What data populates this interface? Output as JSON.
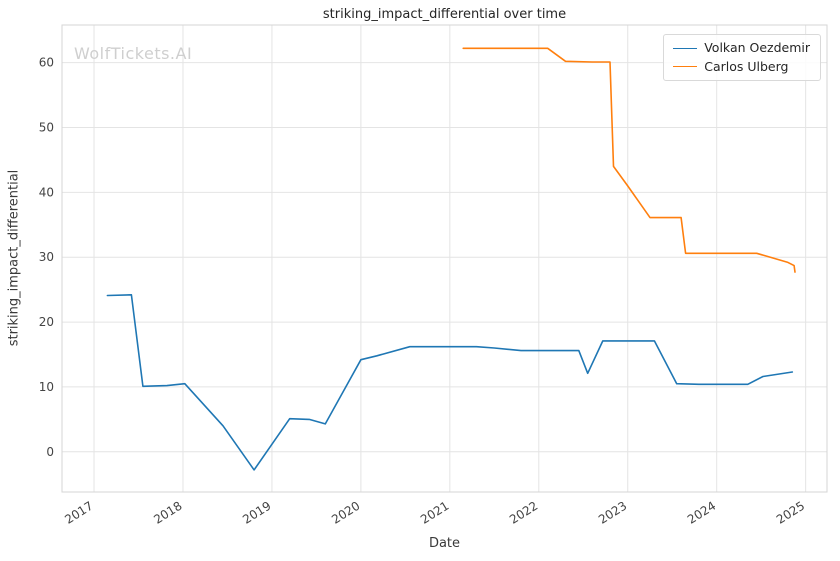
{
  "watermark": "WolfTickets.AI",
  "chart_data": {
    "type": "line",
    "title": "striking_impact_differential over time",
    "xlabel": "Date",
    "ylabel": "striking_impact_differential",
    "grid": true,
    "legend_position": "upper right",
    "xlim": [
      2016.64,
      2025.24
    ],
    "ylim": [
      -6.2,
      65.8
    ],
    "xticks": [
      2017,
      2018,
      2019,
      2020,
      2021,
      2022,
      2023,
      2024,
      2025
    ],
    "yticks": [
      0,
      10,
      20,
      30,
      40,
      50,
      60
    ],
    "series": [
      {
        "name": "Volkan Oezdemir",
        "color": "#1f77b4",
        "points": [
          [
            2017.15,
            24.1
          ],
          [
            2017.42,
            24.2
          ],
          [
            2017.55,
            10.1
          ],
          [
            2017.82,
            10.2
          ],
          [
            2018.02,
            10.5
          ],
          [
            2018.45,
            4.0
          ],
          [
            2018.8,
            -2.8
          ],
          [
            2019.2,
            5.1
          ],
          [
            2019.42,
            5.0
          ],
          [
            2019.6,
            4.3
          ],
          [
            2020.0,
            14.2
          ],
          [
            2020.18,
            14.8
          ],
          [
            2020.55,
            16.2
          ],
          [
            2020.9,
            16.2
          ],
          [
            2021.3,
            16.2
          ],
          [
            2021.5,
            16.0
          ],
          [
            2021.8,
            15.6
          ],
          [
            2022.1,
            15.6
          ],
          [
            2022.45,
            15.6
          ],
          [
            2022.55,
            12.1
          ],
          [
            2022.72,
            17.1
          ],
          [
            2023.0,
            17.1
          ],
          [
            2023.3,
            17.1
          ],
          [
            2023.55,
            10.5
          ],
          [
            2023.8,
            10.4
          ],
          [
            2024.1,
            10.4
          ],
          [
            2024.35,
            10.4
          ],
          [
            2024.52,
            11.6
          ],
          [
            2024.85,
            12.3
          ]
        ]
      },
      {
        "name": "Carlos Ulberg",
        "color": "#ff7f0e",
        "points": [
          [
            2021.15,
            62.2
          ],
          [
            2021.55,
            62.2
          ],
          [
            2021.9,
            62.2
          ],
          [
            2022.1,
            62.2
          ],
          [
            2022.3,
            60.2
          ],
          [
            2022.6,
            60.1
          ],
          [
            2022.8,
            60.1
          ],
          [
            2022.84,
            44.0
          ],
          [
            2023.0,
            41.0
          ],
          [
            2023.25,
            36.1
          ],
          [
            2023.6,
            36.1
          ],
          [
            2023.65,
            30.6
          ],
          [
            2024.0,
            30.6
          ],
          [
            2024.45,
            30.6
          ],
          [
            2024.8,
            29.2
          ],
          [
            2024.87,
            28.7
          ],
          [
            2024.88,
            27.7
          ]
        ]
      }
    ]
  }
}
